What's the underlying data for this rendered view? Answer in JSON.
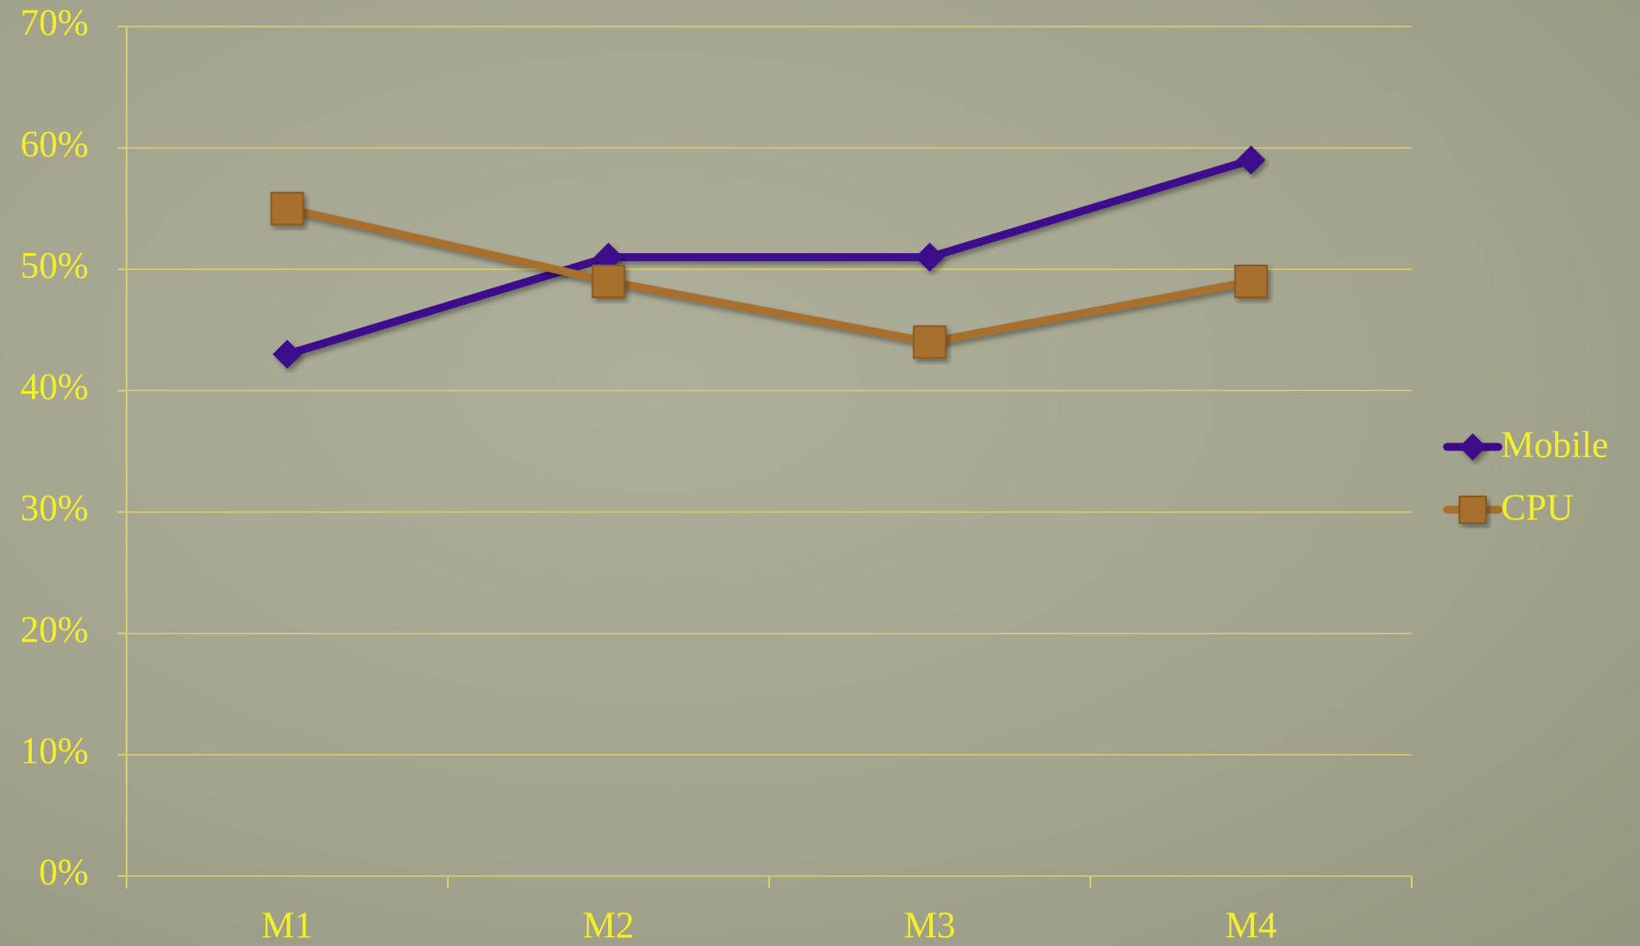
{
  "chart_data": {
    "type": "line",
    "categories": [
      "M1",
      "M2",
      "M3",
      "M4"
    ],
    "series": [
      {
        "name": "Mobile",
        "color": "#3d0a8c",
        "marker": "diamond",
        "values": [
          43,
          51,
          51,
          59
        ]
      },
      {
        "name": "CPU",
        "color": "#a8702e",
        "marker": "square",
        "values": [
          55,
          49,
          44,
          49
        ]
      }
    ],
    "ylim": [
      0,
      70
    ],
    "yticks": [
      {
        "value": 0,
        "label": "0%"
      },
      {
        "value": 10,
        "label": "10%"
      },
      {
        "value": 20,
        "label": "20%"
      },
      {
        "value": 30,
        "label": "30%"
      },
      {
        "value": 40,
        "label": "40%"
      },
      {
        "value": 50,
        "label": "50%"
      },
      {
        "value": 60,
        "label": "60%"
      },
      {
        "value": 70,
        "label": "70%"
      }
    ],
    "grid": true,
    "legend": "right"
  }
}
